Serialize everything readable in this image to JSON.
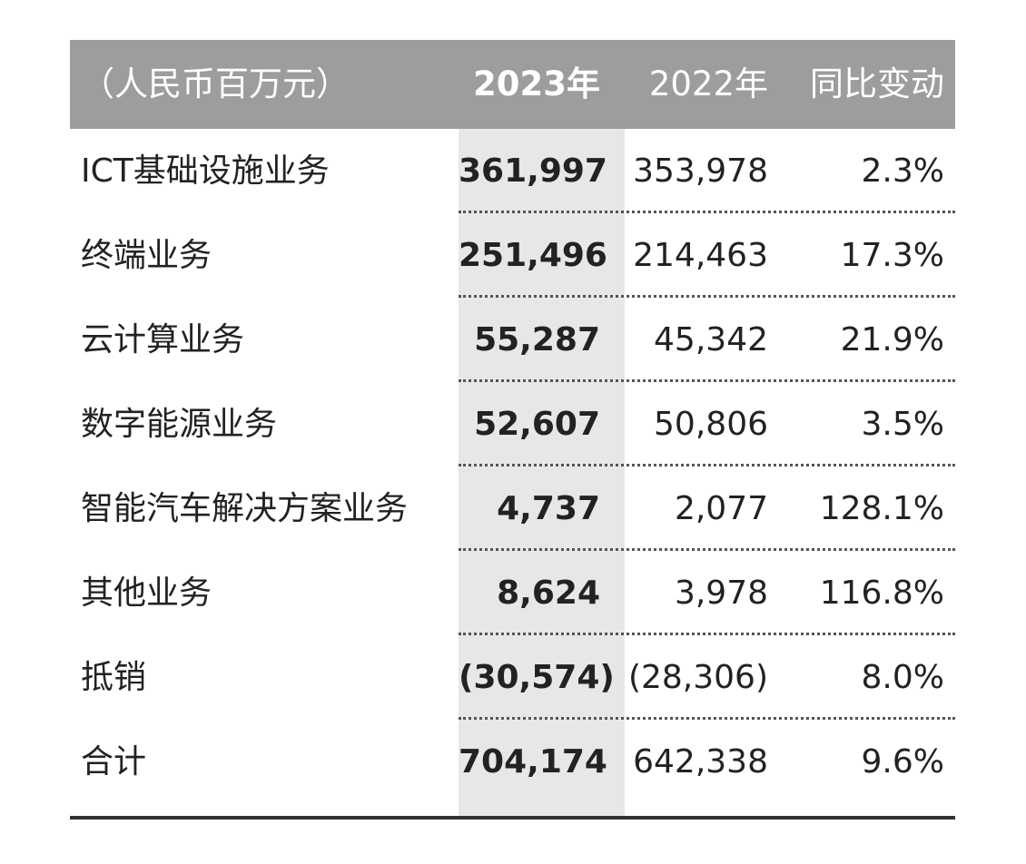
{
  "header": {
    "label": "（人民币百万元）",
    "col_2023": "2023年",
    "col_2022": "2022年",
    "col_change": "同比变动"
  },
  "rows": [
    {
      "label": "ICT基础设施业务",
      "v2023": "361,997",
      "v2022": "353,978",
      "change": "2.3%"
    },
    {
      "label": "终端业务",
      "v2023": "251,496",
      "v2022": "214,463",
      "change": "17.3%"
    },
    {
      "label": "云计算业务",
      "v2023": "55,287",
      "v2022": "45,342",
      "change": "21.9%"
    },
    {
      "label": "数字能源业务",
      "v2023": "52,607",
      "v2022": "50,806",
      "change": "3.5%"
    },
    {
      "label": "智能汽车解决方案业务",
      "v2023": "4,737",
      "v2022": "2,077",
      "change": "128.1%"
    },
    {
      "label": "其他业务",
      "v2023": "8,624",
      "v2022": "3,978",
      "change": "116.8%"
    },
    {
      "label": "抵销",
      "v2023": "(30,574)",
      "v2022": "(28,306)",
      "change": "8.0%"
    },
    {
      "label": "合计",
      "v2023": "704,174",
      "v2022": "642,338",
      "change": "9.6%"
    }
  ],
  "chart_data": {
    "type": "table",
    "columns": [
      "（人民币百万元）",
      "2023年",
      "2022年",
      "同比变动"
    ],
    "rows": [
      [
        "ICT基础设施业务",
        "361,997",
        "353,978",
        "2.3%"
      ],
      [
        "终端业务",
        "251,496",
        "214,463",
        "17.3%"
      ],
      [
        "云计算业务",
        "55,287",
        "45,342",
        "21.9%"
      ],
      [
        "数字能源业务",
        "52,607",
        "50,806",
        "3.5%"
      ],
      [
        "智能汽车解决方案业务",
        "4,737",
        "2,077",
        "128.1%"
      ],
      [
        "其他业务",
        "8,624",
        "3,978",
        "116.8%"
      ],
      [
        "抵销",
        "(30,574)",
        "(28,306)",
        "8.0%"
      ],
      [
        "合计",
        "704,174",
        "642,338",
        "9.6%"
      ]
    ]
  },
  "colors": {
    "header_bg": "#9d9d9d",
    "highlight_column_bg": "#e7e7e7",
    "text": "#222222",
    "rule": "#333333"
  }
}
